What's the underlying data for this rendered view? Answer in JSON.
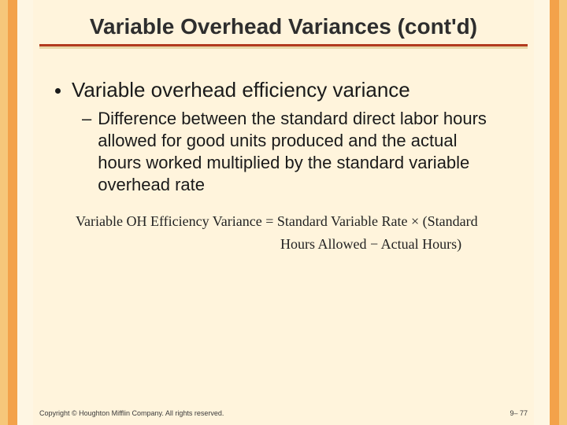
{
  "colors": {
    "background": "#fff4dc",
    "stripe_outer": "#f6c77a",
    "stripe_mid": "#f3a24a",
    "stripe_inner": "#fef6e3",
    "underline_top": "#b33a1f",
    "underline_bottom": "#e8d6a8",
    "text": "#1a1a1a",
    "equation_text": "#222222"
  },
  "typography": {
    "title_fontsize": 28,
    "title_weight": "bold",
    "bullet1_fontsize": 26,
    "bullet2_fontsize": 22,
    "equation_fontsize": 18,
    "equation_family": "Times New Roman",
    "footer_fontsize": 9
  },
  "title": "Variable Overhead Variances (cont'd)",
  "bullets": {
    "level1": "Variable overhead efficiency variance",
    "level2": "Difference between the standard direct labor hours allowed for good units produced and the actual hours worked multiplied by the standard variable overhead rate"
  },
  "equation": {
    "line1": "Variable OH Efficiency Variance = Standard Variable Rate × (Standard",
    "line2": "Hours Allowed − Actual Hours)"
  },
  "footer": {
    "copyright": "Copyright © Houghton Mifflin Company. All rights reserved.",
    "page": "9– 77"
  }
}
